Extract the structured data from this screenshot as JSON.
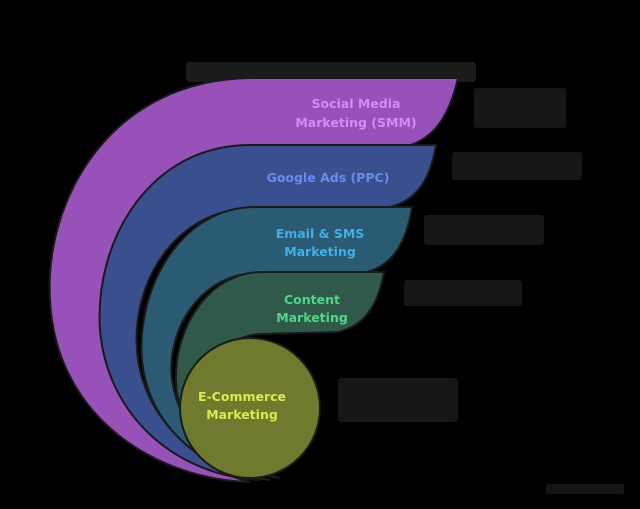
{
  "title": "",
  "layers": [
    {
      "lines": [
        "Social Media",
        "Marketing (SMM)"
      ],
      "fill": "#9751b8",
      "text_color": "#d48cf0"
    },
    {
      "lines": [
        "Google Ads (PPC)"
      ],
      "fill": "#3a4f8e",
      "text_color": "#6a8cf0"
    },
    {
      "lines": [
        "Email & SMS",
        "Marketing"
      ],
      "fill": "#2b5b73",
      "text_color": "#3fb1e8"
    },
    {
      "lines": [
        "Content",
        "Marketing"
      ],
      "fill": "#2f5a4a",
      "text_color": "#4fd88a"
    },
    {
      "lines": [
        "E-Commerce",
        "Marketing"
      ],
      "fill": "#707a2e",
      "text_color": "#d8ec50"
    }
  ],
  "descriptions": [
    "",
    "",
    "",
    "",
    ""
  ],
  "colors": {
    "background": "#000000",
    "outline": "#1a1a1a"
  }
}
